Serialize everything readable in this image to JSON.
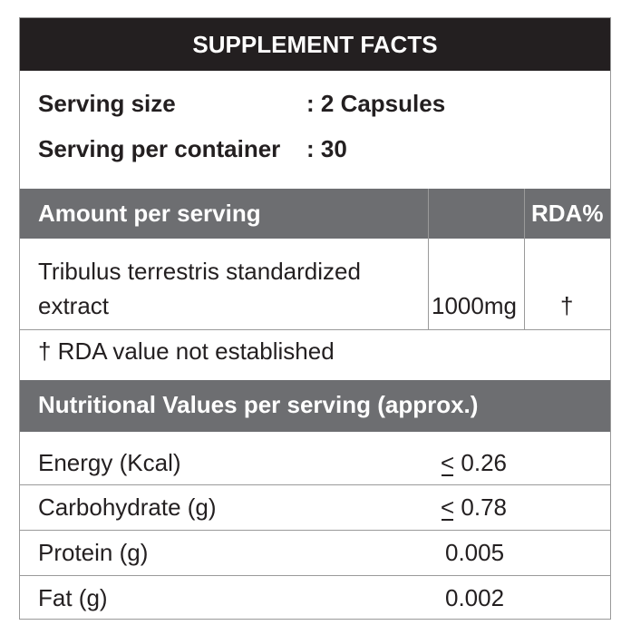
{
  "title": "SUPPLEMENT FACTS",
  "serving": {
    "size_label": "Serving size",
    "size_value": ": 2 Capsules",
    "container_label": "Serving per container",
    "container_value": ": 30"
  },
  "amount_header": {
    "label": "Amount per serving",
    "rda_label": "RDA%"
  },
  "ingredient": {
    "name_line1": "Tribulus terrestris standardized",
    "name_line2": "extract",
    "amount": "1000mg",
    "rda": "†"
  },
  "footnote": "† RDA value not established",
  "nutrition_header": "Nutritional Values per serving (approx.)",
  "nutrition_rows": [
    {
      "label": "Energy (Kcal)",
      "prefix": "<",
      "value": " 0.26"
    },
    {
      "label": "Carbohydrate (g)",
      "prefix": "<",
      "value": " 0.78"
    },
    {
      "label": "Protein (g)",
      "prefix": "",
      "value": "0.005"
    },
    {
      "label": "Fat (g)",
      "prefix": "",
      "value": "0.002"
    }
  ]
}
